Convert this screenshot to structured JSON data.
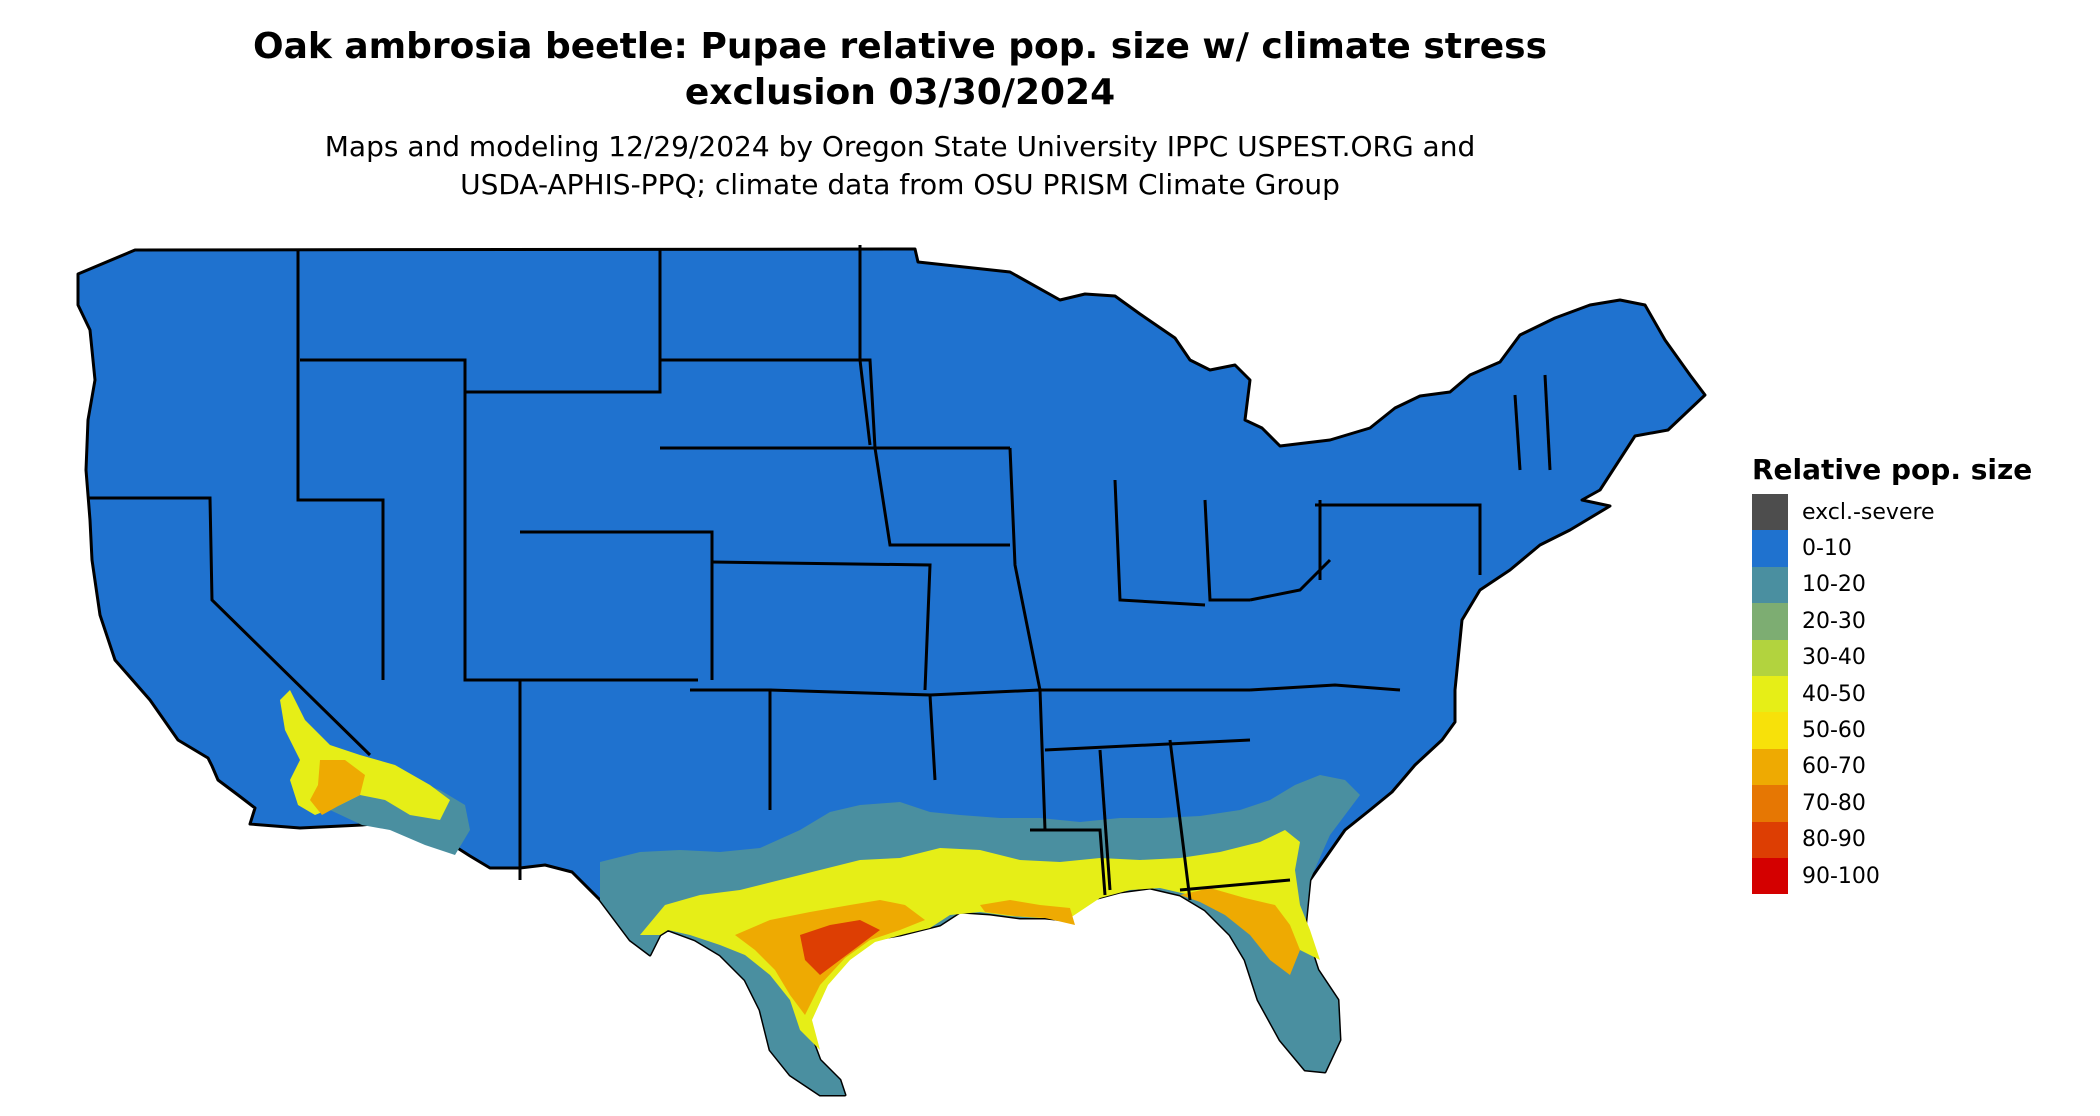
{
  "title": {
    "line1": "Oak ambrosia beetle: Pupae relative pop. size w/ climate stress",
    "line2": "exclusion 03/30/2024"
  },
  "subtitle": {
    "line1": "Maps and modeling 12/29/2024 by Oregon State University IPPC USPEST.ORG and",
    "line2": "USDA-APHIS-PPQ; climate data from OSU PRISM Climate Group"
  },
  "legend": {
    "title": "Relative pop. size",
    "items": [
      {
        "label": "excl.-severe",
        "color": "#4d4d4d"
      },
      {
        "label": "0-10",
        "color": "#1f72cf"
      },
      {
        "label": "10-20",
        "color": "#4a8fa0"
      },
      {
        "label": "20-30",
        "color": "#7dad72"
      },
      {
        "label": "30-40",
        "color": "#b2d33e"
      },
      {
        "label": "40-50",
        "color": "#e6ee17"
      },
      {
        "label": "50-60",
        "color": "#f7e10a"
      },
      {
        "label": "60-70",
        "color": "#eeaa02"
      },
      {
        "label": "70-80",
        "color": "#e67703"
      },
      {
        "label": "80-90",
        "color": "#dd3e03"
      },
      {
        "label": "90-100",
        "color": "#d40000"
      }
    ]
  },
  "map": {
    "region": "Contiguous United States",
    "background_class": "0-10",
    "border_color": "#000000"
  }
}
